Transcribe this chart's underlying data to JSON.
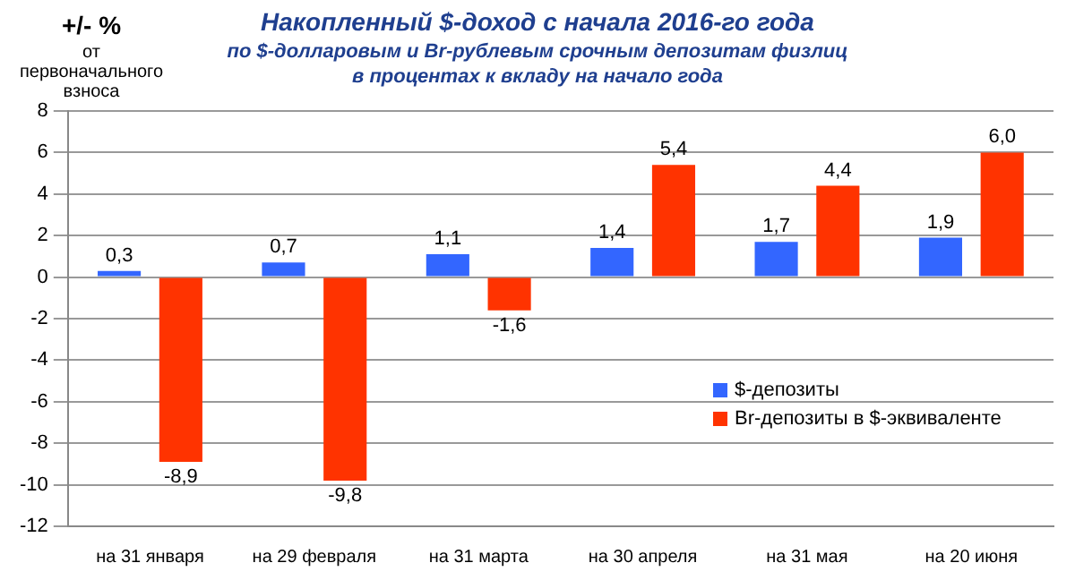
{
  "chart_data": {
    "type": "bar",
    "title": "Накопленный  $-доход с начала 2016-го года",
    "subtitle": "по $-долларовым и Br-рублевым срочным депозитам физлиц\nв процентах к вкладу на начало года",
    "ylabel": "+/- %",
    "annotations": [
      "от первоначального взноса"
    ],
    "categories": [
      "на 31 января",
      "на 29 февраля",
      "на 31 марта",
      "на 30 апреля",
      "на 31 мая",
      "на 20 июня"
    ],
    "series": [
      {
        "name": "$-депозиты",
        "color": "#3366ff",
        "values": [
          0.3,
          0.7,
          1.1,
          1.4,
          1.7,
          1.9
        ],
        "value_labels": [
          "0,3",
          "0,7",
          "1,1",
          "1,4",
          "1,7",
          "1,9"
        ]
      },
      {
        "name": "Br-депозиты в $-эквиваленте",
        "color": "#ff3300",
        "values": [
          -8.9,
          -9.8,
          -1.6,
          5.4,
          4.4,
          6.0
        ],
        "value_labels": [
          "-8,9",
          "-9,8",
          "-1,6",
          "5,4",
          "4,4",
          "6,0"
        ]
      }
    ],
    "ylim": [
      -12,
      8
    ],
    "yticks": [
      -12,
      -10,
      -8,
      -6,
      -4,
      -2,
      0,
      2,
      4,
      6,
      8
    ],
    "grid": "y",
    "legend": "right"
  }
}
